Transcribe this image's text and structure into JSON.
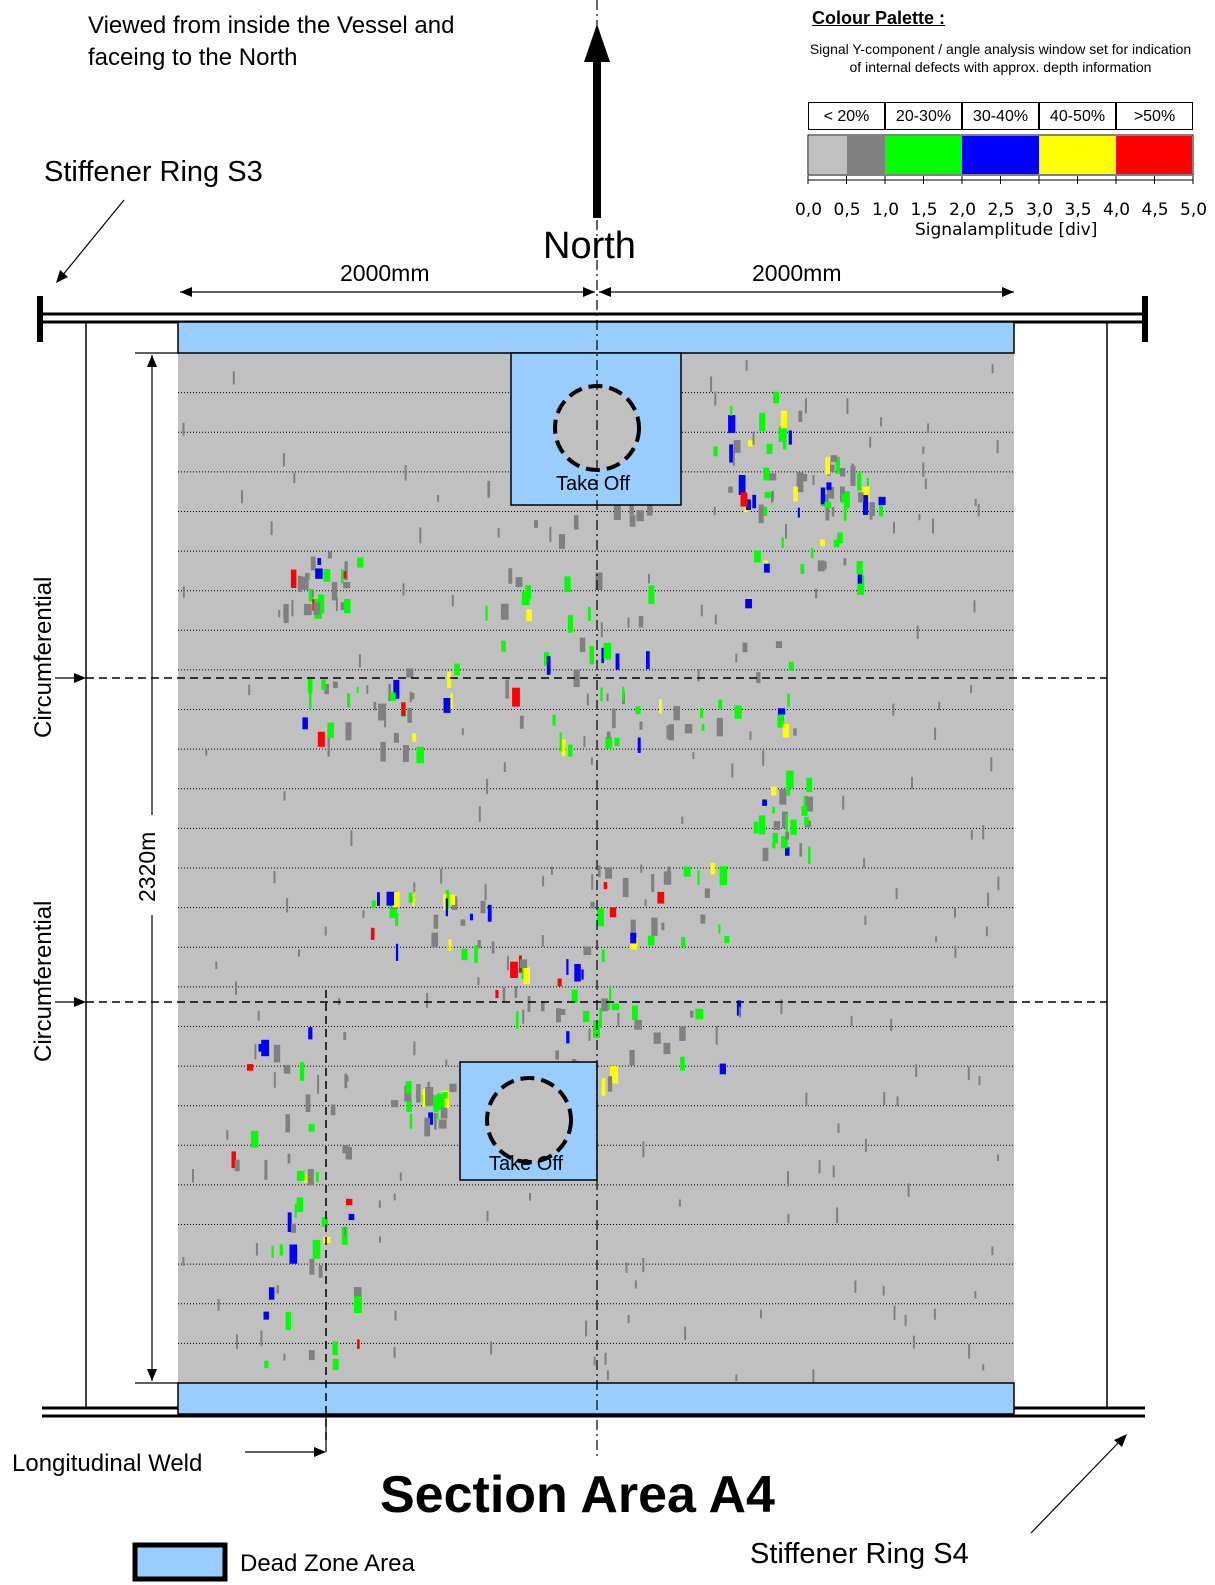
{
  "header": {
    "view_note": "Viewed from inside the Vessel and faceing to the North",
    "north_label": "North",
    "ring_top": "Stiffener Ring S3",
    "ring_bottom": "Stiffener Ring S4"
  },
  "dimensions": {
    "left_width": "2000mm",
    "right_width": "2000mm",
    "height": "2320m"
  },
  "labels": {
    "circumferential_upper": "Circumferential",
    "circumferential_lower": "Circumferential",
    "longitudinal_weld": "Longitudinal Weld",
    "take_off_upper": "Take Off",
    "take_off_lower": "Take Off"
  },
  "title": "Section Area A4",
  "legend": {
    "dead_zone": "Dead Zone Area",
    "dead_zone_color": "#99ccff"
  },
  "palette": {
    "heading": "Colour Palette :",
    "description": "Signal Y-component / angle analysis window set for indication of internal defects with approx. depth information",
    "depth_bins": [
      "< 20%",
      "20-30%",
      "30-40%",
      "40-50%",
      ">50%"
    ],
    "colors": [
      "#c0c0c0",
      "#808080",
      "#00ff00",
      "#0000ff",
      "#ffff00",
      "#ff0000"
    ],
    "ticks": [
      "0,0",
      "0,5",
      "1,0",
      "1,5",
      "2,0",
      "2,5",
      "3,0",
      "3,5",
      "4,0",
      "4,5",
      "5,0"
    ],
    "axis_label": "Signalamplitude [div]"
  },
  "scan": {
    "background": "#c0c0c0",
    "scan_rows": 26
  }
}
